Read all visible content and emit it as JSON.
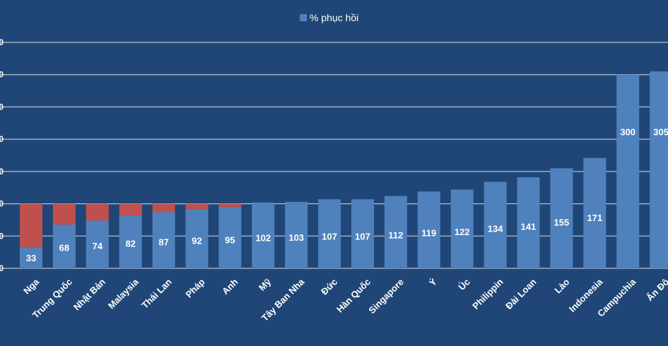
{
  "chart_data": {
    "type": "bar",
    "categories": [
      "Nga",
      "Trung Quốc",
      "Nhật Bản",
      "Malaysia",
      "Thái Lan",
      "Pháp",
      "Anh",
      "Mỹ",
      "Tây Ban Nha",
      "Đức",
      "Hàn Quốc",
      "Singapore",
      "Ý",
      "Úc",
      "Philippin",
      "Đài Loan",
      "Lào",
      "Indonesia",
      "Campuchia",
      "Ấn Độ"
    ],
    "series": [
      {
        "name": "% phục hồi",
        "values": [
          33,
          68,
          74,
          82,
          87,
          92,
          95,
          102,
          103,
          107,
          107,
          112,
          119,
          122,
          134,
          141,
          155,
          171,
          300,
          305
        ],
        "color": "#4f81bd"
      }
    ],
    "deficit_color": "#c0504d",
    "baseline": 100,
    "ylim": [
      0,
      350
    ],
    "legend": "top-center",
    "grid": true,
    "title": "",
    "xlabel": "",
    "ylabel": ""
  }
}
